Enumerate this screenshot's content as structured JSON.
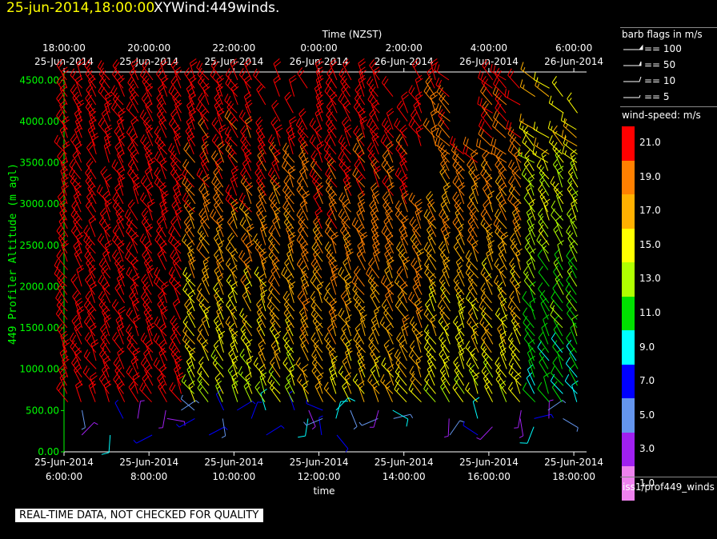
{
  "header": {
    "timestamp": "25-jun-2014,18:00:00",
    "title": "XYWind:449winds."
  },
  "disclaimer": "REAL-TIME DATA, NOT CHECKED FOR QUALITY",
  "legend": {
    "barb_title": "barb flags in m/s",
    "barb_keys": [
      "== 100",
      "== 50",
      "== 10",
      "== 5"
    ],
    "scale_title": "wind-speed: m/s",
    "scale_labels": [
      "21.0",
      "19.0",
      "17.0",
      "15.0",
      "13.0",
      "11.0",
      "9.0",
      "7.0",
      "5.0",
      "3.0",
      "1.0"
    ],
    "scale_colors": [
      "#ff0000",
      "#ff8000",
      "#ffb000",
      "#ffff00",
      "#b0ff00",
      "#00e000",
      "#00ffff",
      "#0000ff",
      "#6495ed",
      "#a020f0",
      "#ee82ee"
    ],
    "source": "iss1/prof449_winds"
  },
  "chart_data": {
    "type": "wind-barb",
    "top_axis_title": "Time (NZST)",
    "top_ticks": [
      {
        "time": "18:00:00",
        "date": "25-Jun-2014"
      },
      {
        "time": "20:00:00",
        "date": "25-Jun-2014"
      },
      {
        "time": "22:00:00",
        "date": "25-Jun-2014"
      },
      {
        "time": "0:00:00",
        "date": "26-Jun-2014"
      },
      {
        "time": "2:00:00",
        "date": "26-Jun-2014"
      },
      {
        "time": "4:00:00",
        "date": "26-Jun-2014"
      },
      {
        "time": "6:00:00",
        "date": "26-Jun-2014"
      }
    ],
    "bottom_axis_title": "time",
    "bottom_ticks": [
      {
        "date": "25-Jun-2014",
        "time": "6:00:00"
      },
      {
        "date": "25-Jun-2014",
        "time": "8:00:00"
      },
      {
        "date": "25-Jun-2014",
        "time": "10:00:00"
      },
      {
        "date": "25-Jun-2014",
        "time": "12:00:00"
      },
      {
        "date": "25-Jun-2014",
        "time": "14:00:00"
      },
      {
        "date": "25-Jun-2014",
        "time": "16:00:00"
      },
      {
        "date": "25-Jun-2014",
        "time": "18:00:00"
      }
    ],
    "ylabel": "449 Profiler Altitude (m agl)",
    "y_ticks": [
      "0.00",
      "500.00",
      "1000.00",
      "1500.00",
      "2000.00",
      "2500.00",
      "3000.00",
      "3500.00",
      "4000.00",
      "4500.00"
    ],
    "ylim": [
      0,
      4600
    ],
    "xlim_hours": [
      6,
      18.3
    ],
    "profile_interval_min": 20,
    "gate_spacing_m": 100
  }
}
